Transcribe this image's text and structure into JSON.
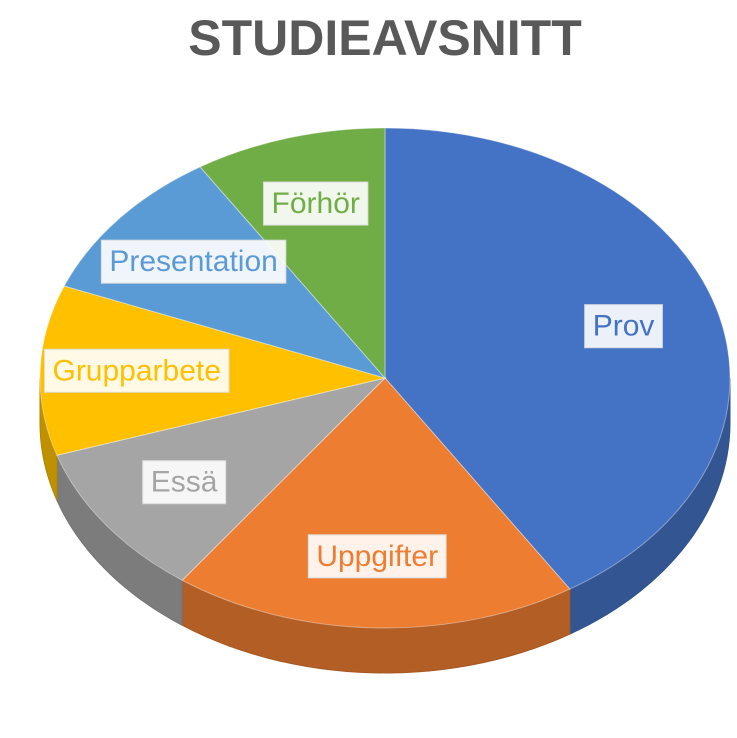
{
  "chart_data": {
    "type": "pie",
    "title": "STUDIEAVSNITT",
    "categories": [
      "Prov",
      "Uppgifter",
      "Essä",
      "Grupparbete",
      "Presentation",
      "Förhör"
    ],
    "values": [
      41,
      19,
      10,
      11,
      10,
      9
    ],
    "colors": [
      "#4472c4",
      "#ed7d31",
      "#a5a5a5",
      "#ffc000",
      "#5b9bd5",
      "#70ad47"
    ]
  }
}
